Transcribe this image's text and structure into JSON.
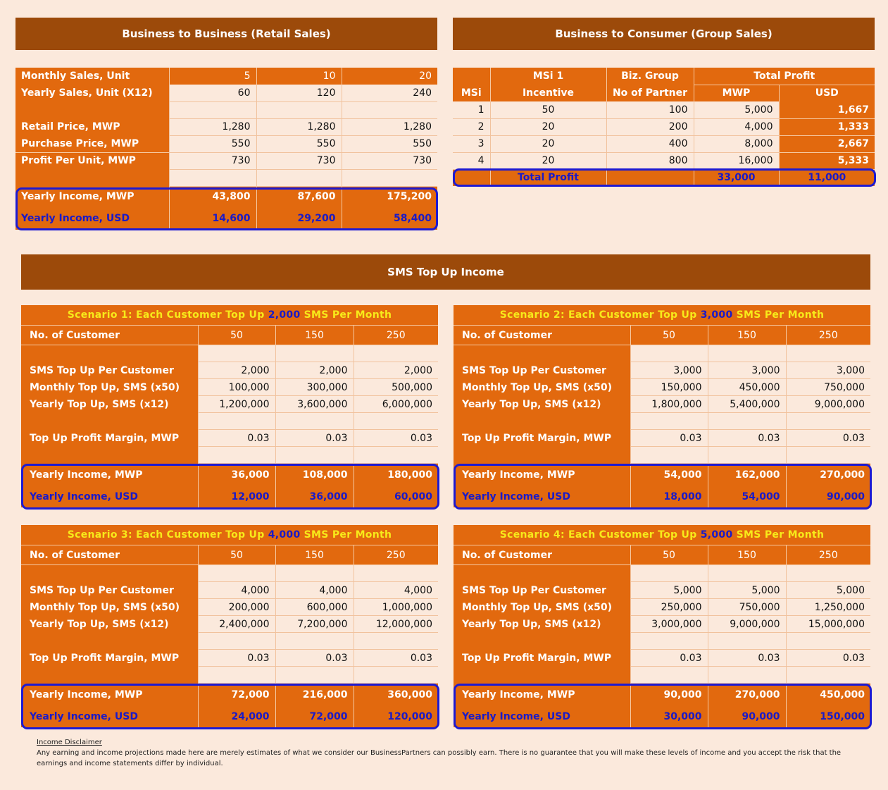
{
  "b2b": {
    "title": "Business to Business (Retail Sales)",
    "rows": [
      {
        "label": "Monthly Sales, Unit",
        "values": [
          "5",
          "10",
          "20"
        ]
      },
      {
        "label": "Yearly Sales, Unit (X12)",
        "values": [
          "60",
          "120",
          "240"
        ]
      },
      {
        "label": "",
        "values": [
          "",
          "",
          ""
        ]
      },
      {
        "label": "Retail Price, MWP",
        "values": [
          "1,280",
          "1,280",
          "1,280"
        ]
      },
      {
        "label": "Purchase Price, MWP",
        "values": [
          "550",
          "550",
          "550"
        ]
      },
      {
        "label": "Profit Per Unit, MWP",
        "values": [
          "730",
          "730",
          "730"
        ]
      },
      {
        "label": "",
        "values": [
          "",
          "",
          ""
        ]
      }
    ],
    "income_mwp": {
      "label": "Yearly Income, MWP",
      "values": [
        "43,800",
        "87,600",
        "175,200"
      ]
    },
    "income_usd": {
      "label": "Yearly Income, USD",
      "values": [
        "14,600",
        "29,200",
        "58,400"
      ]
    }
  },
  "b2c": {
    "title": "Business to Consumer (Group Sales)",
    "headers": {
      "msi1_line1": "MSi 1",
      "msi1_line2": "Incentive",
      "biz_line1": "Biz. Group",
      "biz_line2": "No of Partner",
      "total_profit": "Total Profit",
      "msi": "MSi",
      "mwp": "MWP",
      "usd": "USD"
    },
    "rows": [
      {
        "msi": "1",
        "incentive": "50",
        "partners": "100",
        "mwp": "5,000",
        "usd": "1,667"
      },
      {
        "msi": "2",
        "incentive": "20",
        "partners": "200",
        "mwp": "4,000",
        "usd": "1,333"
      },
      {
        "msi": "3",
        "incentive": "20",
        "partners": "400",
        "mwp": "8,000",
        "usd": "2,667"
      },
      {
        "msi": "4",
        "incentive": "20",
        "partners": "800",
        "mwp": "16,000",
        "usd": "5,333"
      }
    ],
    "total": {
      "label": "Total Profit",
      "mwp": "33,000",
      "usd": "11,000"
    }
  },
  "sms": {
    "title": "SMS Top Up Income",
    "scenarios": [
      {
        "prefix": "Scenario 1:  Each Customer Top Up ",
        "amount": "2,000",
        "suffix": " SMS Per Month",
        "customers_label": "No. of Customer",
        "customers": [
          "50",
          "150",
          "250"
        ],
        "per_customer": {
          "label": "SMS Top Up Per Customer",
          "values": [
            "2,000",
            "2,000",
            "2,000"
          ]
        },
        "monthly": {
          "label": "Monthly Top Up, SMS (x50)",
          "values": [
            "100,000",
            "300,000",
            "500,000"
          ]
        },
        "yearly": {
          "label": "Yearly Top Up, SMS (x12)",
          "values": [
            "1,200,000",
            "3,600,000",
            "6,000,000"
          ]
        },
        "margin": {
          "label": "Top Up Profit Margin, MWP",
          "values": [
            "0.03",
            "0.03",
            "0.03"
          ]
        },
        "income_mwp": {
          "label": "Yearly Income, MWP",
          "values": [
            "36,000",
            "108,000",
            "180,000"
          ]
        },
        "income_usd": {
          "label": "Yearly Income, USD",
          "values": [
            "12,000",
            "36,000",
            "60,000"
          ]
        }
      },
      {
        "prefix": "Scenario 2:  Each Customer Top Up ",
        "amount": "3,000",
        "suffix": " SMS Per Month",
        "customers_label": "No. of Customer",
        "customers": [
          "50",
          "150",
          "250"
        ],
        "per_customer": {
          "label": "SMS Top Up Per Customer",
          "values": [
            "3,000",
            "3,000",
            "3,000"
          ]
        },
        "monthly": {
          "label": "Monthly Top Up, SMS (x50)",
          "values": [
            "150,000",
            "450,000",
            "750,000"
          ]
        },
        "yearly": {
          "label": "Yearly Top Up, SMS (x12)",
          "values": [
            "1,800,000",
            "5,400,000",
            "9,000,000"
          ]
        },
        "margin": {
          "label": "Top Up Profit Margin, MWP",
          "values": [
            "0.03",
            "0.03",
            "0.03"
          ]
        },
        "income_mwp": {
          "label": "Yearly Income, MWP",
          "values": [
            "54,000",
            "162,000",
            "270,000"
          ]
        },
        "income_usd": {
          "label": "Yearly Income, USD",
          "values": [
            "18,000",
            "54,000",
            "90,000"
          ]
        }
      },
      {
        "prefix": "Scenario 3:  Each Customer Top Up ",
        "amount": "4,000",
        "suffix": " SMS Per Month",
        "customers_label": "No. of Customer",
        "customers": [
          "50",
          "150",
          "250"
        ],
        "per_customer": {
          "label": "SMS Top Up Per Customer",
          "values": [
            "4,000",
            "4,000",
            "4,000"
          ]
        },
        "monthly": {
          "label": "Monthly Top Up, SMS (x50)",
          "values": [
            "200,000",
            "600,000",
            "1,000,000"
          ]
        },
        "yearly": {
          "label": "Yearly Top Up, SMS (x12)",
          "values": [
            "2,400,000",
            "7,200,000",
            "12,000,000"
          ]
        },
        "margin": {
          "label": "Top Up Profit Margin, MWP",
          "values": [
            "0.03",
            "0.03",
            "0.03"
          ]
        },
        "income_mwp": {
          "label": "Yearly Income, MWP",
          "values": [
            "72,000",
            "216,000",
            "360,000"
          ]
        },
        "income_usd": {
          "label": "Yearly Income, USD",
          "values": [
            "24,000",
            "72,000",
            "120,000"
          ]
        }
      },
      {
        "prefix": "Scenario 4:  Each Customer Top Up ",
        "amount": "5,000",
        "suffix": " SMS Per Month",
        "customers_label": "No. of Customer",
        "customers": [
          "50",
          "150",
          "250"
        ],
        "per_customer": {
          "label": "SMS Top Up Per Customer",
          "values": [
            "5,000",
            "5,000",
            "5,000"
          ]
        },
        "monthly": {
          "label": "Monthly Top Up, SMS (x50)",
          "values": [
            "250,000",
            "750,000",
            "1,250,000"
          ]
        },
        "yearly": {
          "label": "Yearly Top Up, SMS (x12)",
          "values": [
            "3,000,000",
            "9,000,000",
            "15,000,000"
          ]
        },
        "margin": {
          "label": "Top Up Profit Margin, MWP",
          "values": [
            "0.03",
            "0.03",
            "0.03"
          ]
        },
        "income_mwp": {
          "label": "Yearly Income, MWP",
          "values": [
            "90,000",
            "270,000",
            "450,000"
          ]
        },
        "income_usd": {
          "label": "Yearly Income, USD",
          "values": [
            "30,000",
            "90,000",
            "150,000"
          ]
        }
      }
    ]
  },
  "disclaimer": {
    "title": "Income Disclaimer",
    "text": "Any earning and income projections made here are merely estimates of what we consider our BusinessPartners can possibly earn. There is no guarantee that you will make these levels of income and you accept the risk that the earnings and income statements differ by individual."
  },
  "colors": {
    "banner": "#9c4a0a",
    "cell_orange": "#e2690e",
    "background": "#fbe9dc",
    "highlight_blue": "#1d1ad2",
    "title_yellow": "#f7ea1a"
  }
}
